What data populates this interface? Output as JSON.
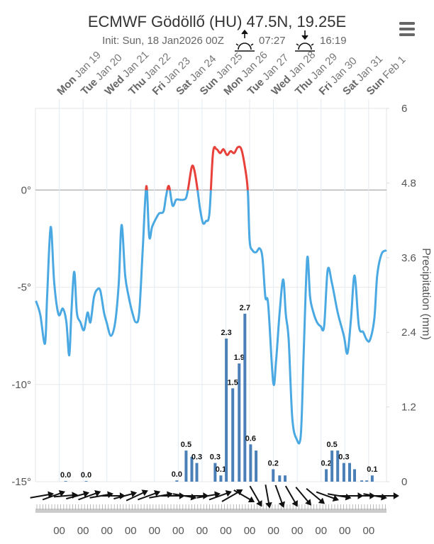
{
  "chart_data": {
    "type": "meteogram",
    "title": "ECMWF Gödöllő (HU) 47.5N, 19.25E",
    "subtitle": "Init: Sun, 18 Jan2026 00Z",
    "sunrise": "07:27",
    "sunset": "16:19",
    "y2_label": "Precipitation (mm)",
    "xlim": [
      0,
      14.75
    ],
    "xticks": [
      {
        "value": 1,
        "label": "Jan 19",
        "weekday": "Mon"
      },
      {
        "value": 2,
        "label": "Jan 20",
        "weekday": "Tue"
      },
      {
        "value": 3,
        "label": "Jan 21",
        "weekday": "Wed"
      },
      {
        "value": 4,
        "label": "Jan 22",
        "weekday": "Thu"
      },
      {
        "value": 5,
        "label": "Jan 23",
        "weekday": "Fri"
      },
      {
        "value": 6,
        "label": "Jan 24",
        "weekday": "Sat"
      },
      {
        "value": 7,
        "label": "Jan 25",
        "weekday": "Sun"
      },
      {
        "value": 8,
        "label": "Jan 26",
        "weekday": "Mon"
      },
      {
        "value": 9,
        "label": "Jan 27",
        "weekday": "Tue"
      },
      {
        "value": 10,
        "label": "Jan 28",
        "weekday": "Wed"
      },
      {
        "value": 11,
        "label": "Jan 29",
        "weekday": "Thu"
      },
      {
        "value": 12,
        "label": "Jan 30",
        "weekday": "Fri"
      },
      {
        "value": 13,
        "label": "Jan 31",
        "weekday": "Sat"
      },
      {
        "value": 14,
        "label": "Feb 1",
        "weekday": "Sun"
      }
    ],
    "hour_labels": [
      "00",
      "00",
      "00",
      "00",
      "00",
      "00",
      "00",
      "00",
      "00",
      "00",
      "00",
      "00",
      "00",
      "00"
    ],
    "ylim": [
      -15,
      4.2
    ],
    "yticks": [
      {
        "value": -15,
        "label": "-15°"
      },
      {
        "value": -10,
        "label": "-10°"
      },
      {
        "value": -5,
        "label": "-5°"
      },
      {
        "value": 0,
        "label": "0°"
      }
    ],
    "y2lim": [
      0,
      6
    ],
    "y2ticks": [
      0,
      1.2,
      2.4,
      3.6,
      4.8,
      6
    ],
    "grid": true,
    "series": [
      {
        "type": "line",
        "color": "#4aa9e2",
        "color_above_threshold": "#e8403a",
        "threshold": 0,
        "x": [
          0.02,
          0.2,
          0.4,
          0.49,
          0.64,
          0.79,
          0.97,
          1.15,
          1.3,
          1.42,
          1.51,
          1.63,
          1.74,
          1.89,
          2.04,
          2.19,
          2.31,
          2.46,
          2.61,
          2.73,
          2.88,
          2.99,
          3.17,
          3.35,
          3.5,
          3.62,
          3.77,
          3.92,
          4.07,
          4.22,
          4.36,
          4.51,
          4.66,
          4.78,
          4.9,
          5.05,
          5.2,
          5.38,
          5.49,
          5.61,
          5.76,
          5.91,
          6.06,
          6.21,
          6.33,
          6.42,
          6.57,
          6.68,
          6.8,
          6.92,
          7.04,
          7.16,
          7.31,
          7.46,
          7.61,
          7.76,
          7.9,
          8.05,
          8.2,
          8.35,
          8.5,
          8.65,
          8.8,
          8.92,
          9.0,
          9.12,
          9.27,
          9.42,
          9.54,
          9.66,
          9.78,
          9.99,
          10.11,
          10.26,
          10.41,
          10.52,
          10.64,
          10.79,
          10.97,
          11.15,
          11.27,
          11.42,
          11.54,
          11.68,
          11.83,
          11.98,
          12.13,
          12.28,
          12.46,
          12.7,
          12.96,
          13.11,
          13.26,
          13.41,
          13.59,
          13.77,
          13.92,
          14.06,
          14.24,
          14.36,
          14.54,
          14.75
        ],
        "values": [
          -5.7,
          -6.4,
          -7.9,
          -5.5,
          -1.9,
          -4.8,
          -6.4,
          -6.1,
          -6.8,
          -8.5,
          -6.3,
          -4.2,
          -6.3,
          -6.8,
          -7.2,
          -6.3,
          -6.8,
          -5.5,
          -5.1,
          -5.2,
          -6.3,
          -6.8,
          -7.5,
          -6.8,
          -4.8,
          -1.8,
          -4.4,
          -5.5,
          -6.3,
          -6.8,
          -6.3,
          -3.0,
          0.2,
          -2.4,
          -1.9,
          -1.5,
          -1.2,
          -1.1,
          -0.3,
          0.2,
          -0.8,
          -0.5,
          -0.5,
          -0.5,
          -0.4,
          0.1,
          1.2,
          1.0,
          0.1,
          -1.0,
          -1.7,
          -1.6,
          -1.2,
          1.9,
          2.1,
          1.9,
          2.1,
          1.8,
          2.0,
          1.9,
          2.2,
          2.1,
          1.2,
          0.0,
          -2.6,
          -3.1,
          -3.2,
          -3.0,
          -3.5,
          -5.5,
          -5.9,
          -9.9,
          -8.8,
          -6.3,
          -4.6,
          -6.4,
          -7.7,
          -11.7,
          -12.8,
          -12.6,
          -8.4,
          -3.5,
          -5.5,
          -6.3,
          -6.8,
          -7.0,
          -7.0,
          -4.1,
          -4.8,
          -6.3,
          -7.5,
          -8.4,
          -6.6,
          -4.4,
          -7.0,
          -7.3,
          -7.7,
          -7.7,
          -6.6,
          -4.4,
          -3.3,
          -3.1
        ]
      },
      {
        "type": "bar",
        "axis": "y2",
        "color": "#4a7fb8",
        "x": [
          1.27,
          2.13,
          5.94,
          6.33,
          6.57,
          6.78,
          7.55,
          7.79,
          8.02,
          8.29,
          8.56,
          8.8,
          9.04,
          9.27,
          9.99,
          10.26,
          10.49,
          12.22,
          12.46,
          12.7,
          12.96,
          13.2,
          13.41,
          13.71,
          13.92,
          14.15
        ],
        "values": [
          0.01,
          0.01,
          0.02,
          0.5,
          0.4,
          0.3,
          0.3,
          0.1,
          2.3,
          1.5,
          1.9,
          2.7,
          0.6,
          0.5,
          0.2,
          0.1,
          0.1,
          0.2,
          0.5,
          0.5,
          0.3,
          0.3,
          0.2,
          0.02,
          0.02,
          0.1
        ],
        "value_labels": [
          "0.0",
          "0.0",
          "0.0",
          "0.5",
          null,
          "0.3",
          "0.3",
          "0.1",
          "2.3",
          "1.5",
          "1.9",
          "2.7",
          "0.6",
          null,
          "0.2",
          null,
          null,
          "0.2",
          "0.5",
          null,
          "0.3",
          null,
          null,
          null,
          null,
          "0.1"
        ]
      }
    ],
    "wind": {
      "x": [
        0.25,
        0.75,
        1.25,
        1.75,
        2.25,
        2.75,
        3.25,
        3.75,
        4.25,
        4.75,
        5.25,
        5.75,
        6.25,
        6.75,
        7.25,
        7.75,
        8.25,
        8.75,
        9.25,
        9.75,
        10.25,
        10.75,
        11.25,
        11.75,
        12.25,
        12.75,
        13.25,
        13.75,
        14.25,
        14.75
      ],
      "direction": [
        260,
        250,
        265,
        255,
        250,
        260,
        270,
        255,
        245,
        250,
        260,
        270,
        280,
        270,
        260,
        250,
        240,
        300,
        330,
        350,
        340,
        330,
        320,
        310,
        290,
        280,
        270,
        270,
        280,
        270
      ]
    }
  }
}
